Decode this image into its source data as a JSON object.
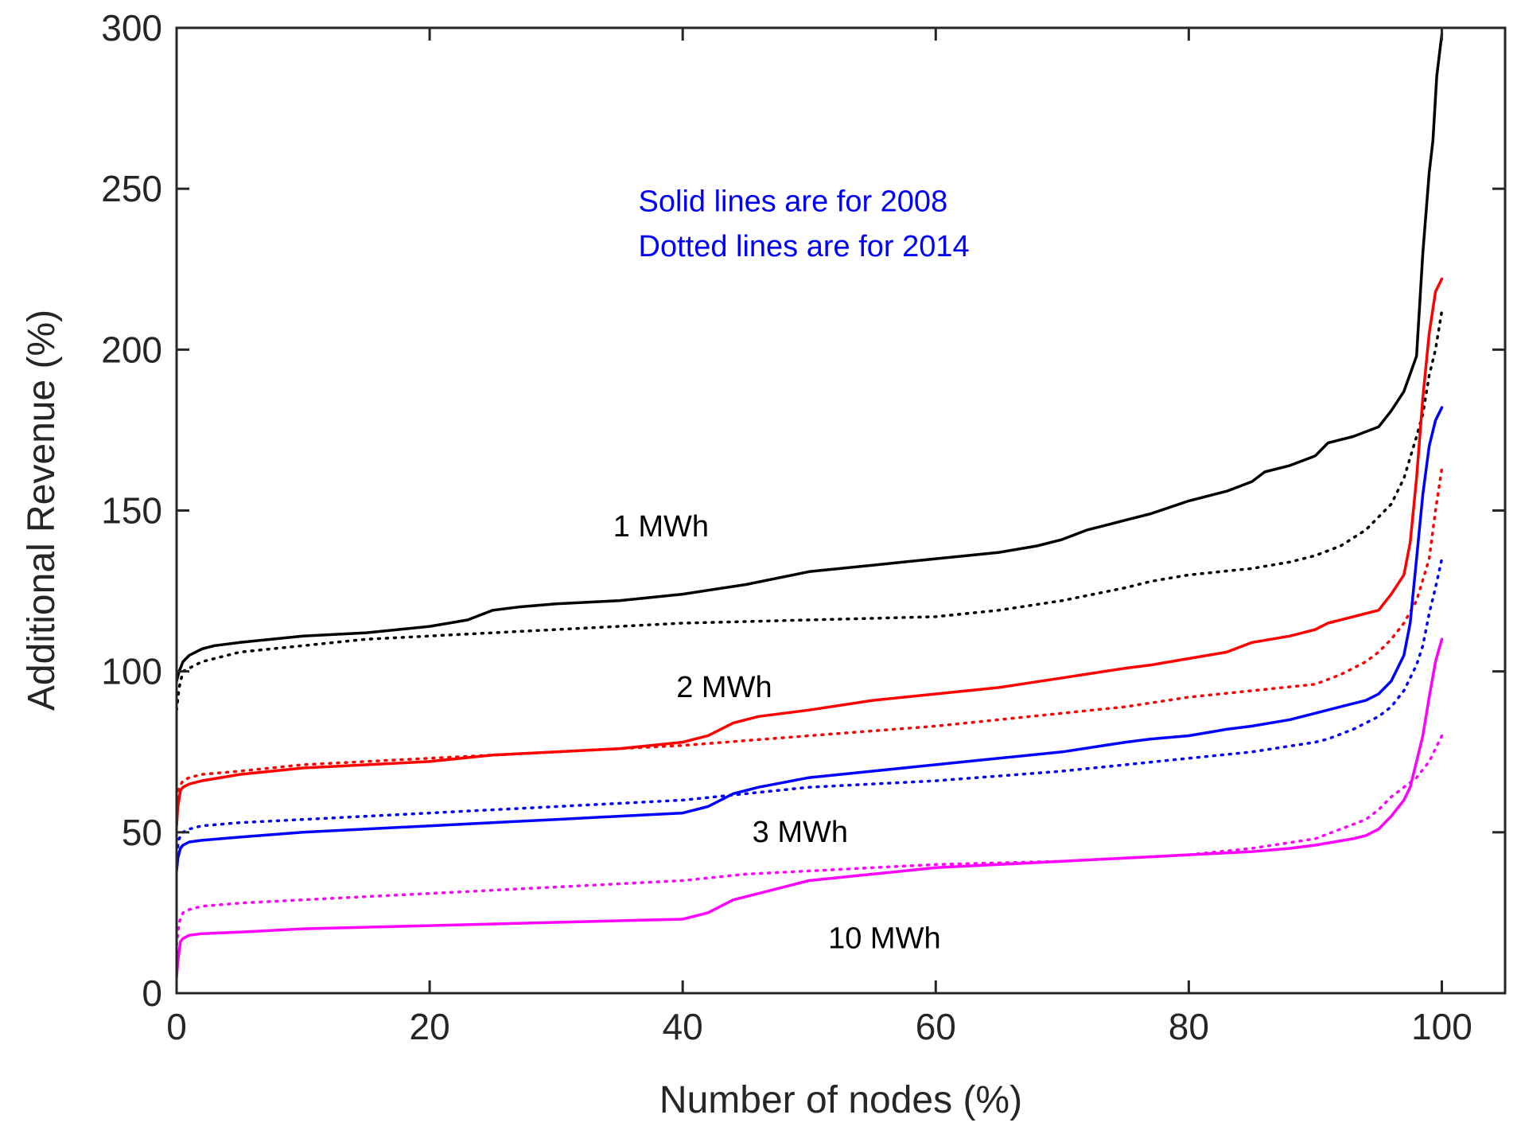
{
  "chart_data": {
    "type": "line",
    "title": "",
    "xlabel": "Number of nodes (%)",
    "ylabel": "Additional Revenue (%)",
    "xlim": [
      0,
      105
    ],
    "ylim": [
      0,
      300
    ],
    "xticks": [
      0,
      20,
      40,
      60,
      80,
      100
    ],
    "yticks": [
      0,
      50,
      100,
      150,
      200,
      250,
      300
    ],
    "xtick_labels": [
      "0",
      "20",
      "40",
      "60",
      "80",
      "100"
    ],
    "ytick_labels": [
      "0",
      "50",
      "100",
      "150",
      "200",
      "250",
      "300"
    ],
    "grid": false,
    "annotations": [
      {
        "text": "Solid lines are for 2008",
        "x": 36.5,
        "y": 243,
        "color": "#0000ff"
      },
      {
        "text": "Dotted lines are for 2014",
        "x": 36.5,
        "y": 229,
        "color": "#0000ff"
      }
    ],
    "curve_labels": [
      {
        "text": "1 MWh",
        "x": 34.5,
        "y": 142
      },
      {
        "text": "2 MWh",
        "x": 39.5,
        "y": 92
      },
      {
        "text": "3 MWh",
        "x": 45.5,
        "y": 47
      },
      {
        "text": "10 MWh",
        "x": 51.5,
        "y": 14
      }
    ],
    "series": [
      {
        "name": "1 MWh 2008",
        "color": "#000000",
        "style": "solid",
        "x": [
          0,
          0.2,
          0.5,
          1,
          2,
          3,
          5,
          10,
          15,
          20,
          23,
          25,
          27,
          30,
          35,
          40,
          45,
          50,
          55,
          60,
          65,
          68,
          70,
          72,
          75,
          77,
          80,
          83,
          85,
          86,
          88,
          90,
          91,
          93,
          95,
          96,
          97,
          98,
          98.5,
          99,
          99.3,
          99.6,
          100
        ],
        "y": [
          97,
          100,
          103,
          105,
          107,
          108,
          109,
          111,
          112,
          114,
          116,
          119,
          120,
          121,
          122,
          124,
          127,
          131,
          133,
          135,
          137,
          139,
          141,
          144,
          147,
          149,
          153,
          156,
          159,
          162,
          164,
          167,
          171,
          173,
          176,
          181,
          187,
          198,
          230,
          255,
          265,
          285,
          298
        ]
      },
      {
        "name": "1 MWh 2014",
        "color": "#000000",
        "style": "dotted",
        "x": [
          0,
          0.2,
          0.5,
          1,
          2,
          3,
          5,
          10,
          15,
          20,
          25,
          30,
          40,
          50,
          60,
          65,
          70,
          75,
          77,
          80,
          85,
          88,
          90,
          92,
          94,
          95,
          96,
          97,
          98,
          98.5,
          99,
          99.5,
          100
        ],
        "y": [
          88,
          95,
          100,
          101,
          103,
          104,
          106,
          108,
          110,
          111,
          112,
          113,
          115,
          116,
          117,
          119,
          122,
          126,
          128,
          130,
          132,
          134,
          136,
          139,
          144,
          148,
          152,
          160,
          173,
          180,
          192,
          200,
          212
        ]
      },
      {
        "name": "2 MWh 2008",
        "color": "#ff0000",
        "style": "solid",
        "x": [
          0,
          0.1,
          0.3,
          0.5,
          1,
          2,
          5,
          10,
          20,
          25,
          30,
          35,
          40,
          42,
          44,
          46,
          50,
          55,
          60,
          65,
          70,
          75,
          77,
          80,
          83,
          85,
          88,
          90,
          91,
          93,
          95,
          96,
          97,
          97.5,
          98,
          98.5,
          99,
          99.5,
          100
        ],
        "y": [
          52,
          58,
          63,
          64,
          65,
          66,
          68,
          70,
          72,
          74,
          75,
          76,
          78,
          80,
          84,
          86,
          88,
          91,
          93,
          95,
          98,
          101,
          102,
          104,
          106,
          109,
          111,
          113,
          115,
          117,
          119,
          124,
          130,
          140,
          160,
          185,
          205,
          218,
          222
        ]
      },
      {
        "name": "2 MWh 2014",
        "color": "#ff0000",
        "style": "dotted",
        "x": [
          0,
          0.2,
          0.5,
          1,
          2,
          5,
          10,
          20,
          30,
          40,
          50,
          60,
          70,
          75,
          80,
          85,
          90,
          92,
          94,
          95,
          96,
          97,
          98,
          99,
          99.5,
          100
        ],
        "y": [
          58,
          64,
          66,
          67,
          68,
          69,
          71,
          73,
          75,
          77,
          80,
          83,
          87,
          89,
          92,
          94,
          96,
          99,
          103,
          106,
          110,
          115,
          122,
          135,
          150,
          163
        ]
      },
      {
        "name": "3 MWh 2008",
        "color": "#0000ff",
        "style": "solid",
        "x": [
          0,
          0.1,
          0.3,
          0.5,
          1,
          2,
          5,
          10,
          20,
          30,
          35,
          40,
          42,
          44,
          46,
          50,
          55,
          60,
          65,
          70,
          75,
          77,
          80,
          83,
          85,
          88,
          90,
          92,
          94,
          95,
          96,
          97,
          97.5,
          98,
          98.5,
          99,
          99.5,
          100
        ],
        "y": [
          38,
          42,
          45,
          46,
          47,
          47.5,
          48.5,
          50,
          52,
          54,
          55,
          56,
          58,
          62,
          64,
          67,
          69,
          71,
          73,
          75,
          78,
          79,
          80,
          82,
          83,
          85,
          87,
          89,
          91,
          93,
          97,
          105,
          115,
          135,
          155,
          170,
          178,
          182
        ]
      },
      {
        "name": "3 MWh 2014",
        "color": "#0000ff",
        "style": "dotted",
        "x": [
          0,
          0.2,
          0.5,
          1,
          2,
          5,
          10,
          20,
          30,
          40,
          45,
          50,
          60,
          70,
          75,
          80,
          85,
          90,
          91,
          93,
          95,
          96,
          97,
          98,
          98.5,
          99,
          99.5,
          100
        ],
        "y": [
          43,
          48,
          50,
          51,
          52,
          53,
          54,
          56,
          58,
          60,
          62,
          64,
          66,
          69,
          71,
          73,
          75,
          78,
          79,
          82,
          86,
          89,
          94,
          102,
          108,
          118,
          126,
          135
        ]
      },
      {
        "name": "10 MWh 2008",
        "color": "#ff00ff",
        "style": "solid",
        "x": [
          0,
          0.1,
          0.3,
          0.5,
          1,
          2,
          5,
          10,
          20,
          30,
          40,
          42,
          44,
          46,
          48,
          50,
          55,
          60,
          65,
          70,
          75,
          80,
          85,
          88,
          90,
          93,
          94,
          95,
          96,
          97,
          97.5,
          98,
          98.5,
          99,
          99.5,
          100
        ],
        "y": [
          5,
          10,
          16,
          17,
          18,
          18.5,
          19,
          20,
          21,
          22,
          23,
          25,
          29,
          31,
          33,
          35,
          37,
          39,
          40,
          41,
          42,
          43,
          44,
          45,
          46,
          48,
          49,
          51,
          55,
          60,
          64,
          72,
          80,
          92,
          103,
          110
        ]
      },
      {
        "name": "10 MWh 2014",
        "color": "#ff00ff",
        "style": "dotted",
        "x": [
          0,
          0.2,
          0.5,
          1,
          2,
          5,
          10,
          20,
          30,
          40,
          45,
          50,
          60,
          70,
          80,
          85,
          90,
          92,
          94,
          95,
          96,
          97,
          98,
          99,
          99.5,
          100
        ],
        "y": [
          15,
          22,
          25,
          26,
          27,
          28,
          29,
          31,
          33,
          35,
          37,
          38,
          40,
          41,
          43,
          45,
          48,
          51,
          54,
          57,
          61,
          64,
          67,
          72,
          76,
          80
        ]
      }
    ]
  }
}
